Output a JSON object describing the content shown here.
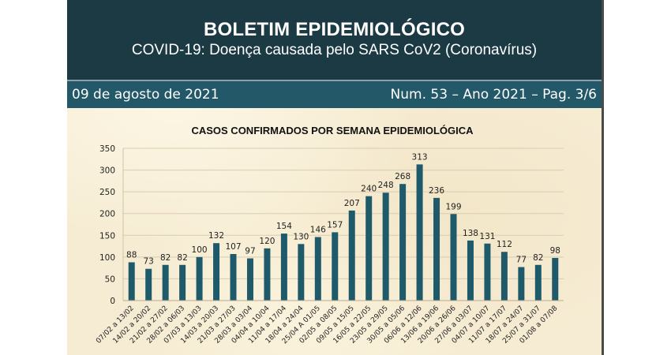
{
  "document": {
    "title": "BOLETIM EPIDEMIOLÓGICO",
    "subtitle": "COVID-19: Doença  causada pelo SARS CoV2 (Coronavírus)",
    "date": "09 de agosto de 2021",
    "issue": "Num. 53 – Ano 2021 – Pag. 3/6"
  },
  "colors": {
    "header_bg": "#1b3a44",
    "band_bg": "#235868",
    "bar": "#1f5a6b",
    "paper": "#f6ecd3"
  },
  "chart_data": {
    "type": "bar",
    "title": "CASOS CONFIRMADOS POR SEMANA EPIDEMIOLÓGICA",
    "xlabel": "",
    "ylabel": "",
    "ylim": [
      0,
      350
    ],
    "yticks": [
      0,
      50,
      100,
      150,
      200,
      250,
      300,
      350
    ],
    "grid": true,
    "legend": "none",
    "categories": [
      "07/02 a 13/02",
      "14/02 a 20/02",
      "21/02 a 27/02",
      "28/02 a 06/03",
      "07/03 a 13/03",
      "14/03 a 20/03",
      "21/03 a 27/03",
      "28/03 a 03/04",
      "04/04 a 10/04",
      "11/04 a 17/04",
      "18/04 a 24/04",
      "25/04 A 01/05",
      "02/05 a 08/05",
      "09/05 a 15/05",
      "16/05 a 22/05",
      "23/05 a 29/05",
      "30/05 a 05/06",
      "06/06 a 12/06",
      "13/06 a 19/06",
      "20/06 a 26/06",
      "27/06 a 03/07",
      "04/07 a 10/07",
      "11/07 a 17/07",
      "18/07 a 24/07",
      "25/07 a 31/07",
      "01/08 a 07/08"
    ],
    "values": [
      88,
      73,
      82,
      82,
      100,
      132,
      107,
      97,
      120,
      154,
      130,
      146,
      157,
      207,
      240,
      248,
      268,
      313,
      236,
      199,
      138,
      131,
      112,
      77,
      82,
      98
    ]
  }
}
